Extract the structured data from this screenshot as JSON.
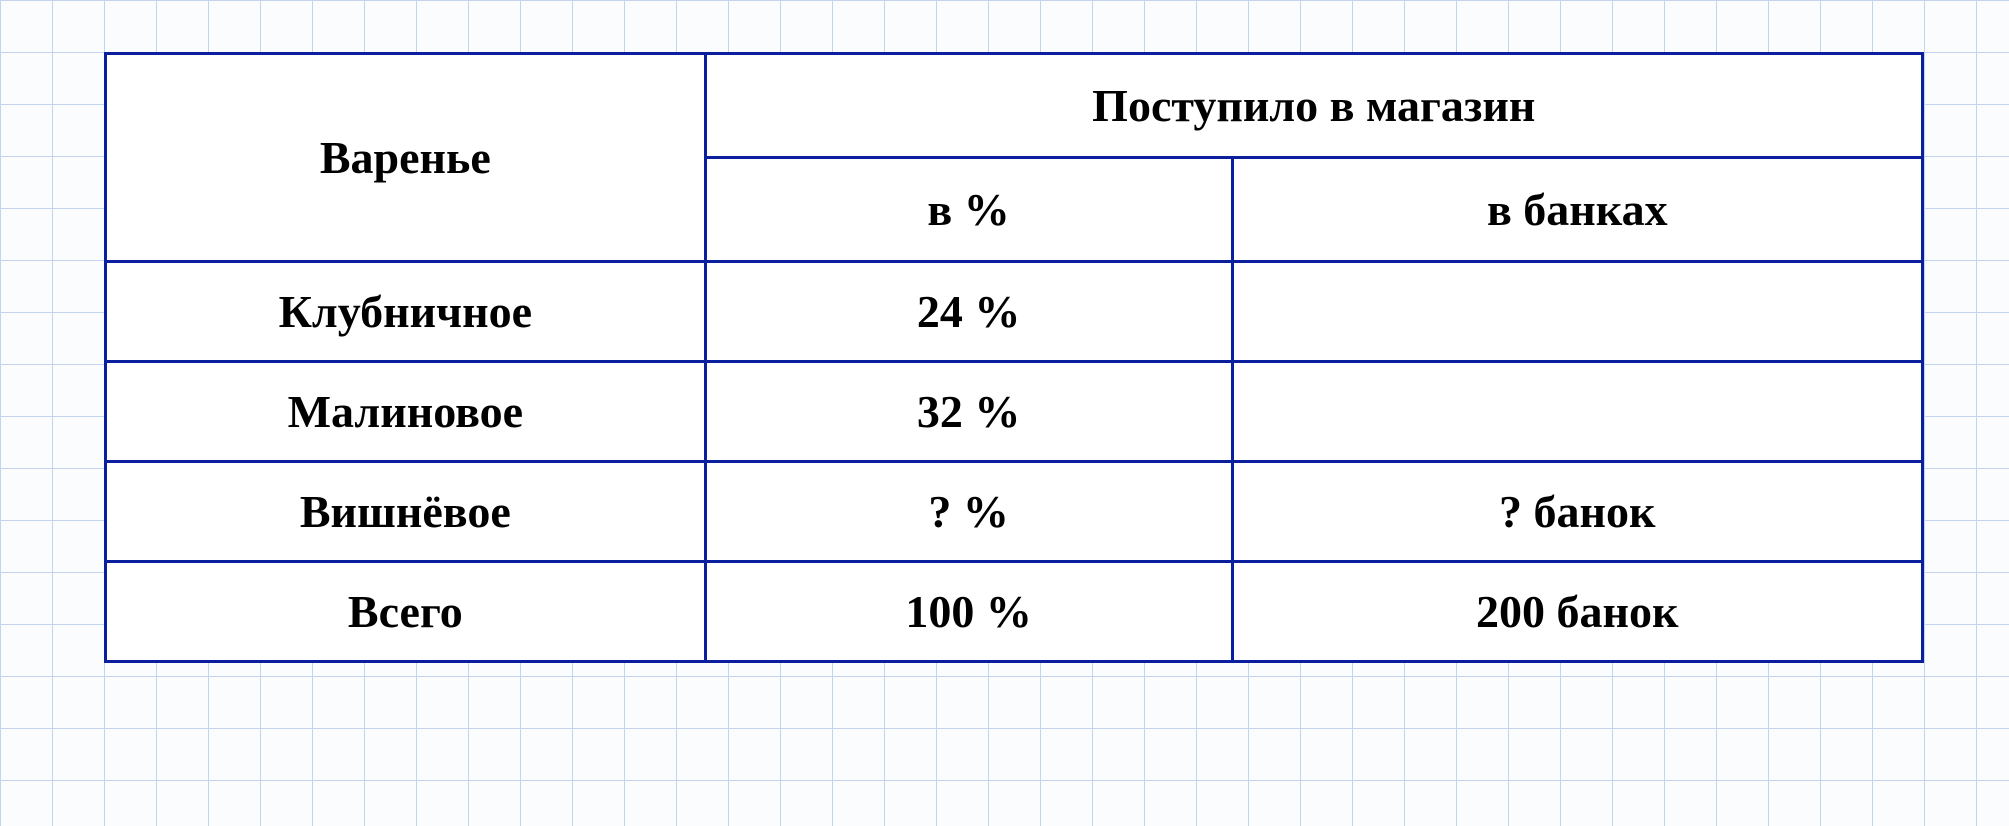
{
  "table": {
    "border_color": "#0a1f9e",
    "cell_bg": "#ffffff",
    "grid_bg": "#fbfcfe",
    "grid_line": "#c4d4ee",
    "text_color": "#000000",
    "font_size": 46,
    "header": {
      "jam": "Варенье",
      "delivered": "Поступило в магазин",
      "percent": "в %",
      "jars": "в банках"
    },
    "rows": [
      {
        "name": "Клубничное",
        "percent": "24 %",
        "jars": ""
      },
      {
        "name": "Малиновое",
        "percent": "32 %",
        "jars": ""
      },
      {
        "name": "Вишнёвое",
        "percent": "? %",
        "jars": "? банок"
      },
      {
        "name": "Всего",
        "percent": "100 %",
        "jars": "200 банок"
      }
    ]
  }
}
